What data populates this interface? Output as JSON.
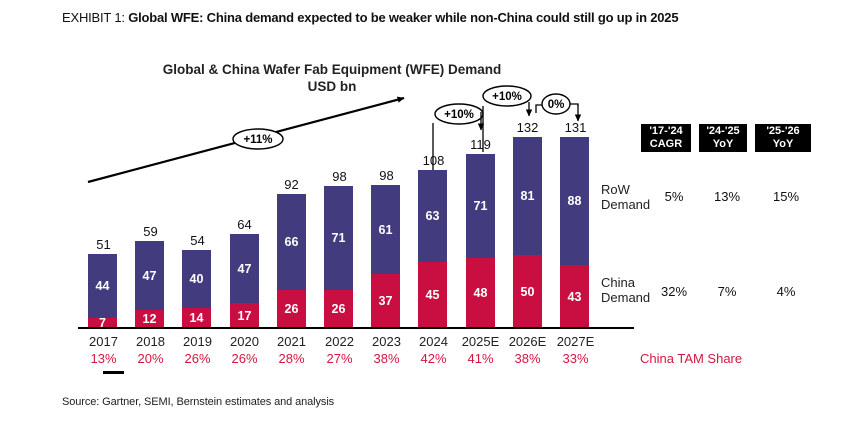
{
  "page": {
    "exhibit_label": "EXHIBIT 1: ",
    "exhibit_title": "Global WFE: China demand expected to be weaker while non-China could still go up in 2025",
    "source": "Source: Gartner, SEMI, Bernstein estimates and analysis"
  },
  "chart_data": {
    "type": "bar",
    "stacked": true,
    "title": "Global & China Wafer Fab Equipment (WFE) Demand",
    "subtitle": "USD bn",
    "categories": [
      "2017",
      "2018",
      "2019",
      "2020",
      "2021",
      "2022",
      "2023",
      "2024",
      "2025E",
      "2026E",
      "2027E"
    ],
    "series": [
      {
        "name": "China Demand",
        "color": "#C90E41",
        "values": [
          7,
          12,
          14,
          17,
          26,
          26,
          37,
          45,
          48,
          50,
          43
        ]
      },
      {
        "name": "RoW Demand",
        "color": "#423C7E",
        "values": [
          44,
          47,
          40,
          47,
          66,
          71,
          61,
          63,
          71,
          81,
          88
        ]
      }
    ],
    "totals": [
      51,
      59,
      54,
      64,
      92,
      98,
      98,
      108,
      119,
      132,
      131
    ],
    "china_tam_share": [
      "13%",
      "20%",
      "26%",
      "26%",
      "28%",
      "27%",
      "38%",
      "42%",
      "41%",
      "38%",
      "33%"
    ],
    "china_tam_share_label": "China TAM Share",
    "tam_share_color": "#D3173E",
    "annotations": [
      {
        "label": "+11%",
        "from": "2017",
        "to": "2024"
      },
      {
        "label": "+10%",
        "from": "2024",
        "to": "2025E"
      },
      {
        "label": "+10%",
        "from": "2025E",
        "to": "2026E"
      },
      {
        "label": "0%",
        "from": "2026E",
        "to": "2027E"
      }
    ],
    "ylim": [
      0,
      140
    ],
    "grid": false,
    "legend_position": "right"
  },
  "side_table": {
    "columns": [
      "'17-'24\nCAGR",
      "'24-'25\nYoY",
      "'25-'26\nYoY"
    ],
    "rows": [
      {
        "label": "RoW Demand",
        "values": [
          "5%",
          "13%",
          "15%"
        ]
      },
      {
        "label": "China Demand",
        "values": [
          "32%",
          "7%",
          "4%"
        ]
      }
    ]
  }
}
